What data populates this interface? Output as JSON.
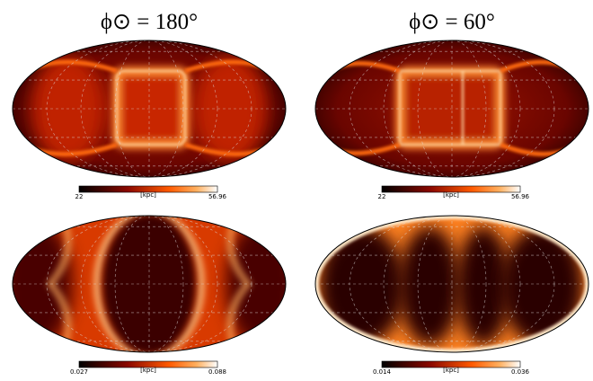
{
  "panels": [
    {
      "title": "ϕ⊙ = 180°",
      "colorbar": {
        "min": 22,
        "max": 56.96,
        "unit": "[kpc]"
      }
    },
    {
      "title": "ϕ⊙ = 60°",
      "colorbar": {
        "min": 22,
        "max": 56.96,
        "unit": "[kpc]"
      }
    },
    {
      "colorbar": {
        "min": 0.027,
        "max": 0.088,
        "unit": "[kpc]"
      }
    },
    {
      "colorbar": {
        "min": 0.014,
        "max": 0.036,
        "unit": "[kpc]"
      }
    }
  ]
}
